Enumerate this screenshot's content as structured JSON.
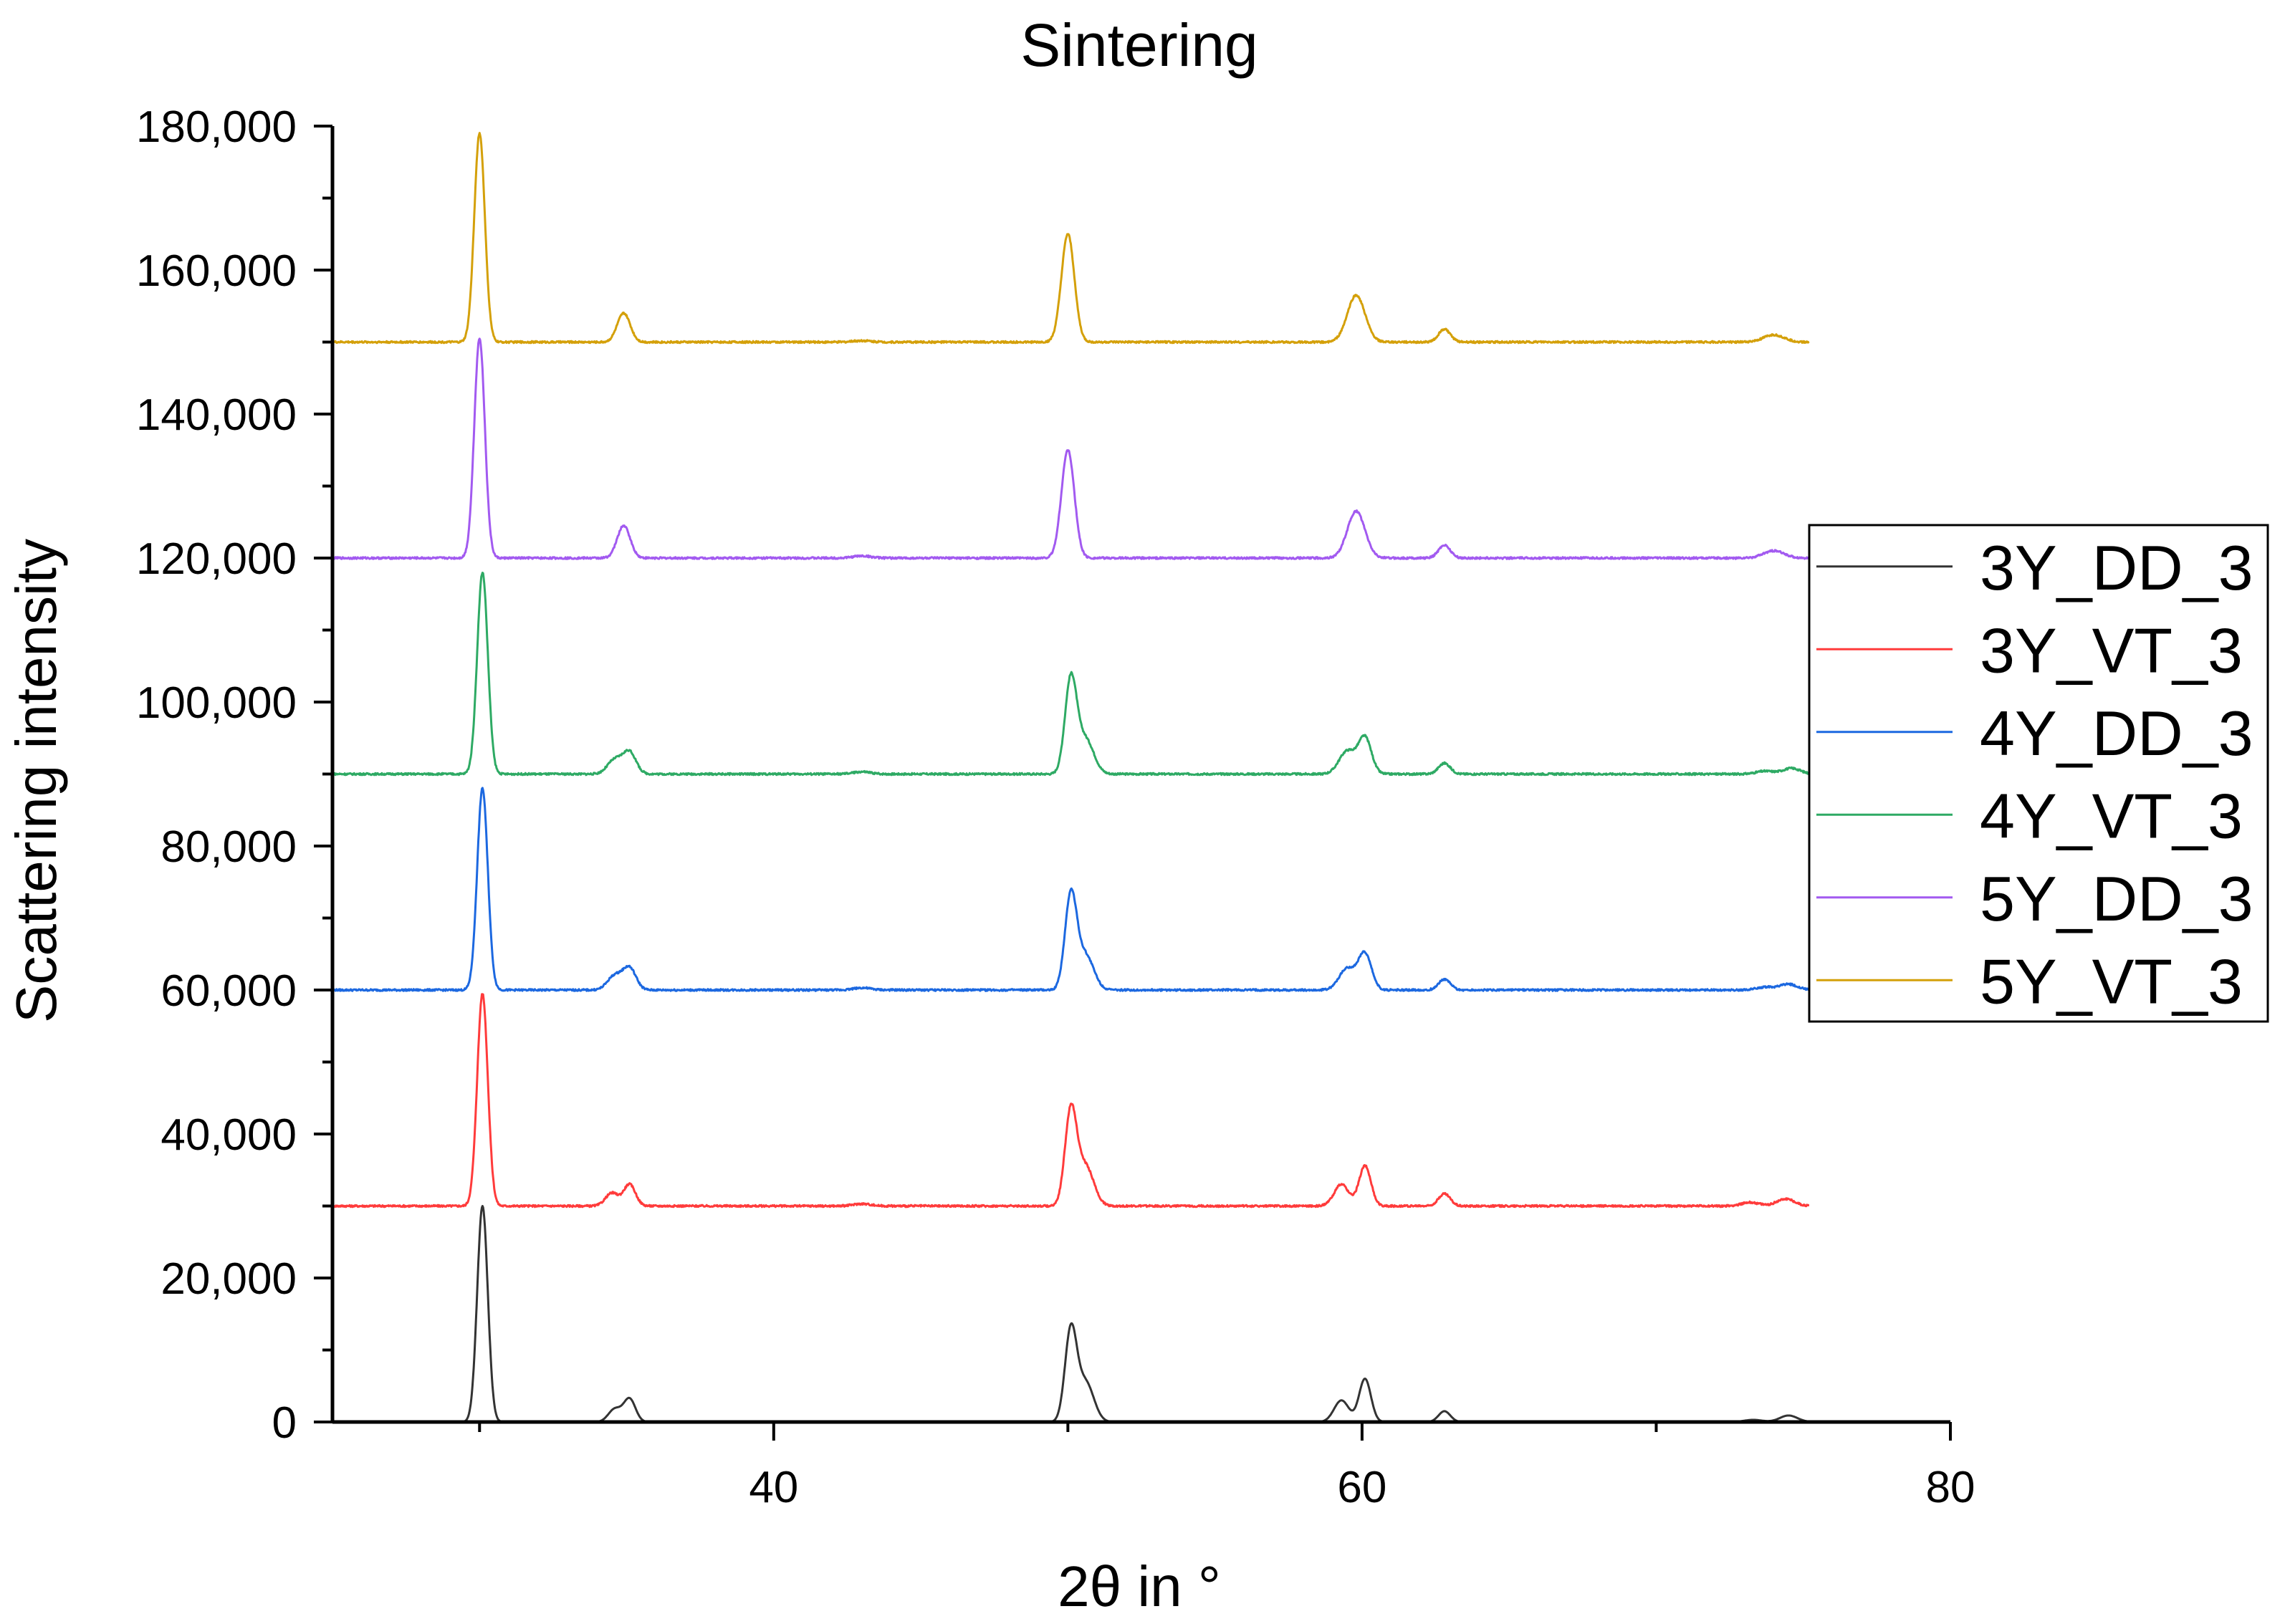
{
  "chart_data": {
    "type": "line",
    "title": "Sintering",
    "xlabel": "2θ in °",
    "ylabel": "Scattering intensity",
    "xlim": [
      25,
      80
    ],
    "ylim": [
      0,
      180000
    ],
    "x_ticks": [
      40,
      60,
      80
    ],
    "x_tick_labels": [
      "40",
      "60",
      "80"
    ],
    "y_ticks": [
      0,
      20000,
      40000,
      60000,
      80000,
      100000,
      120000,
      140000,
      160000,
      180000
    ],
    "y_tick_labels": [
      "0",
      "20,000",
      "40,000",
      "60,000",
      "80,000",
      "100,000",
      "120,000",
      "140,000",
      "160,000",
      "180,000"
    ],
    "x_range": [
      25,
      75.2
    ],
    "legend_position": "right",
    "series": [
      {
        "name": "3Y_DD_3",
        "color": "#333333",
        "offset": 0,
        "peaks": [
          [
            30.1,
            30000,
            0.18
          ],
          [
            34.6,
            1800,
            0.22
          ],
          [
            35.1,
            3200,
            0.2
          ],
          [
            50.1,
            12500,
            0.2
          ],
          [
            50.6,
            5500,
            0.28
          ],
          [
            59.3,
            3000,
            0.25
          ],
          [
            60.1,
            6000,
            0.2
          ],
          [
            62.8,
            1500,
            0.2
          ],
          [
            73.3,
            300,
            0.3
          ],
          [
            74.5,
            900,
            0.3
          ]
        ]
      },
      {
        "name": "3Y_VT_3",
        "color": "#ff3b3b",
        "offset": 30000,
        "peaks": [
          [
            30.1,
            29500,
            0.18
          ],
          [
            34.5,
            1800,
            0.22
          ],
          [
            35.1,
            3000,
            0.2
          ],
          [
            43.0,
            300,
            0.3
          ],
          [
            50.1,
            13000,
            0.2
          ],
          [
            50.6,
            5500,
            0.28
          ],
          [
            59.3,
            3000,
            0.25
          ],
          [
            60.1,
            5600,
            0.2
          ],
          [
            62.8,
            1700,
            0.2
          ],
          [
            73.2,
            500,
            0.3
          ],
          [
            74.4,
            1000,
            0.3
          ]
        ]
      },
      {
        "name": "4Y_DD_3",
        "color": "#1c68e0",
        "offset": 60000,
        "peaks": [
          [
            30.1,
            28000,
            0.18
          ],
          [
            34.6,
            2000,
            0.25
          ],
          [
            35.1,
            3000,
            0.22
          ],
          [
            43.0,
            300,
            0.3
          ],
          [
            50.1,
            13000,
            0.2
          ],
          [
            50.6,
            4800,
            0.28
          ],
          [
            59.5,
            3000,
            0.28
          ],
          [
            60.1,
            5000,
            0.22
          ],
          [
            62.8,
            1500,
            0.2
          ],
          [
            73.7,
            400,
            0.3
          ],
          [
            74.5,
            800,
            0.3
          ]
        ]
      },
      {
        "name": "4Y_VT_3",
        "color": "#2eaa64",
        "offset": 90000,
        "peaks": [
          [
            30.1,
            28000,
            0.18
          ],
          [
            34.6,
            2000,
            0.25
          ],
          [
            35.1,
            3000,
            0.22
          ],
          [
            43.0,
            300,
            0.3
          ],
          [
            50.1,
            13000,
            0.2
          ],
          [
            50.6,
            4800,
            0.28
          ],
          [
            59.5,
            3200,
            0.28
          ],
          [
            60.1,
            5000,
            0.22
          ],
          [
            62.8,
            1500,
            0.2
          ],
          [
            73.7,
            400,
            0.3
          ],
          [
            74.6,
            800,
            0.3
          ]
        ]
      },
      {
        "name": "5Y_DD_3",
        "color": "#a25af0",
        "offset": 120000,
        "peaks": [
          [
            30.0,
            30500,
            0.18
          ],
          [
            34.9,
            4500,
            0.22
          ],
          [
            43.0,
            300,
            0.3
          ],
          [
            50.0,
            15000,
            0.22
          ],
          [
            59.8,
            6500,
            0.3
          ],
          [
            62.8,
            1800,
            0.2
          ],
          [
            74.0,
            1000,
            0.35
          ]
        ]
      },
      {
        "name": "5Y_VT_3",
        "color": "#d4a00a",
        "offset": 150000,
        "peaks": [
          [
            30.0,
            29000,
            0.18
          ],
          [
            34.9,
            4000,
            0.22
          ],
          [
            43.0,
            200,
            0.3
          ],
          [
            50.0,
            15000,
            0.22
          ],
          [
            59.8,
            6500,
            0.3
          ],
          [
            62.8,
            1800,
            0.2
          ],
          [
            74.0,
            1000,
            0.35
          ]
        ]
      }
    ]
  }
}
